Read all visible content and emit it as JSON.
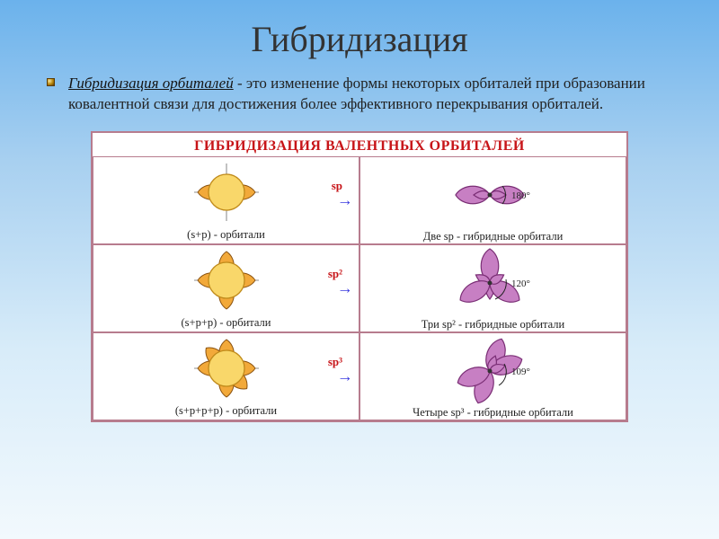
{
  "title": "Гибридизация",
  "desc": {
    "bullet": "■",
    "term": "Гибридизация орбиталей",
    "rest": " - это изменение формы некоторых орбиталей при образовании ковалентной связи для достижения более эффективного перекрывания орбиталей."
  },
  "diagram": {
    "header": "ГИБРИДИЗАЦИЯ ВАЛЕНТНЫХ ОРБИТАЛЕЙ",
    "arrow_label": "sp",
    "arrow_labels": [
      "sp",
      "sp²",
      "sp³"
    ],
    "rows": [
      {
        "left_caption": "(s+p) - орбитали",
        "right_caption": "Две sp - гибридные орбитали",
        "angle": "180°",
        "p_lobes": 2,
        "hybrid_lobes": 2
      },
      {
        "left_caption": "(s+p+p) - орбитали",
        "right_caption": "Три sp² - гибридные орбитали",
        "angle": "120°",
        "p_lobes": 4,
        "hybrid_lobes": 3
      },
      {
        "left_caption": "(s+p+p+p) - орбитали",
        "right_caption": "Четыре sp³ - гибридные орбитали",
        "angle": "109°",
        "p_lobes": 6,
        "hybrid_lobes": 4
      }
    ],
    "colors": {
      "s_orbital_fill": "#f9d76a",
      "s_orbital_stroke": "#c08a1a",
      "p_orbital_fill": "#f2a93a",
      "p_orbital_stroke": "#8a5210",
      "hybrid_fill": "#c77fc3",
      "hybrid_stroke": "#7a2e75",
      "arrow_color": "#3a3adf",
      "angle_arc_color": "#222"
    }
  }
}
